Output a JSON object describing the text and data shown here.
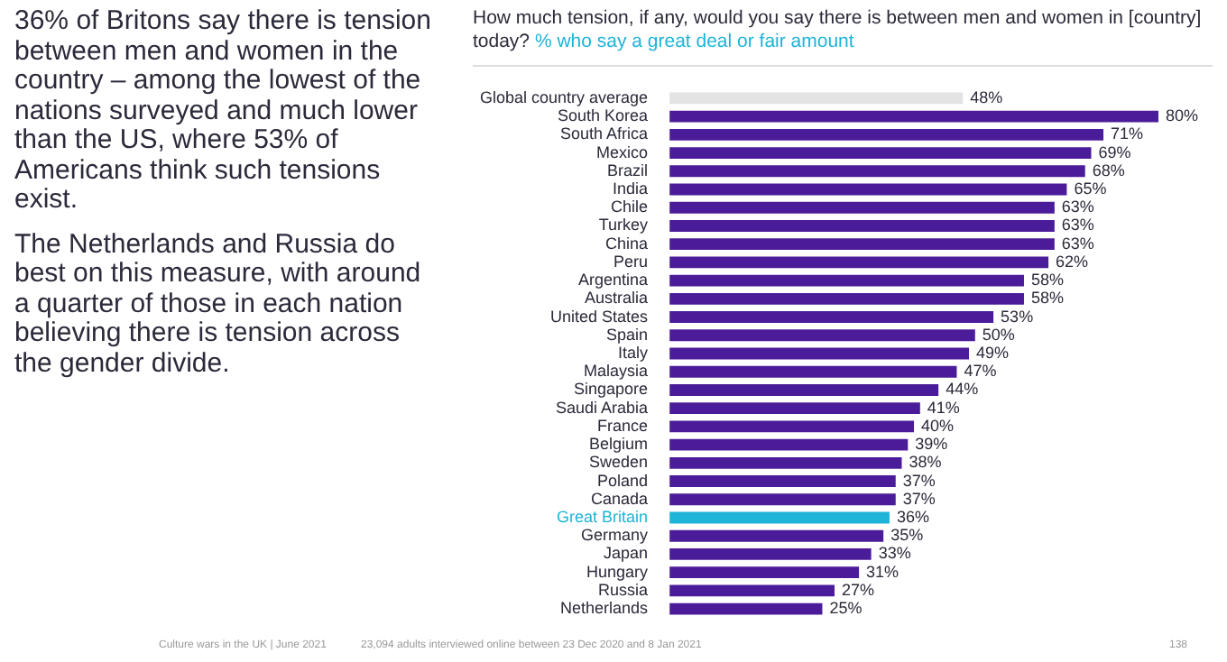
{
  "chart_data": {
    "type": "bar",
    "orientation": "horizontal",
    "title": "How much tension, if any, would you say there is between men and women in [country] today?",
    "subtitle": "% who say a great deal or fair amount",
    "categories": [
      "Global country average",
      "South Korea",
      "South Africa",
      "Mexico",
      "Brazil",
      "India",
      "Chile",
      "Turkey",
      "China",
      "Peru",
      "Argentina",
      "Australia",
      "United States",
      "Spain",
      "Italy",
      "Malaysia",
      "Singapore",
      "Saudi Arabia",
      "France",
      "Belgium",
      "Sweden",
      "Poland",
      "Canada",
      "Great Britain",
      "Germany",
      "Japan",
      "Hungary",
      "Russia",
      "Netherlands"
    ],
    "values": [
      48,
      80,
      71,
      69,
      68,
      65,
      63,
      63,
      63,
      62,
      58,
      58,
      53,
      50,
      49,
      47,
      44,
      41,
      40,
      39,
      38,
      37,
      37,
      36,
      35,
      33,
      31,
      27,
      25
    ],
    "value_labels": [
      "48%",
      "80%",
      "71%",
      "69%",
      "68%",
      "65%",
      "63%",
      "63%",
      "63%",
      "62%",
      "58%",
      "58%",
      "53%",
      "50%",
      "49%",
      "47%",
      "44%",
      "41%",
      "40%",
      "39%",
      "38%",
      "37%",
      "37%",
      "36%",
      "35%",
      "33%",
      "31%",
      "27%",
      "25%"
    ],
    "colors": [
      "#e3e3e3",
      "#4b1c99",
      "#4b1c99",
      "#4b1c99",
      "#4b1c99",
      "#4b1c99",
      "#4b1c99",
      "#4b1c99",
      "#4b1c99",
      "#4b1c99",
      "#4b1c99",
      "#4b1c99",
      "#4b1c99",
      "#4b1c99",
      "#4b1c99",
      "#4b1c99",
      "#4b1c99",
      "#4b1c99",
      "#4b1c99",
      "#4b1c99",
      "#4b1c99",
      "#4b1c99",
      "#4b1c99",
      "#1eb4d8",
      "#4b1c99",
      "#4b1c99",
      "#4b1c99",
      "#4b1c99",
      "#4b1c99"
    ],
    "annotations": [
      "36% of Britons say there is tension between men and women in the country – among the lowest of the nations surveyed and much lower than the US, where 53% of Americans think such tensions exist.",
      "The Netherlands and Russia do best on this measure, with around a quarter of those in each nation believing there is tension across the gender divide.",
      "Culture wars in the UK | June 2021",
      "23,094 adults interviewed online between 23 Dec 2020 and 8 Jan 2021",
      "138"
    ],
    "legend": false
  }
}
